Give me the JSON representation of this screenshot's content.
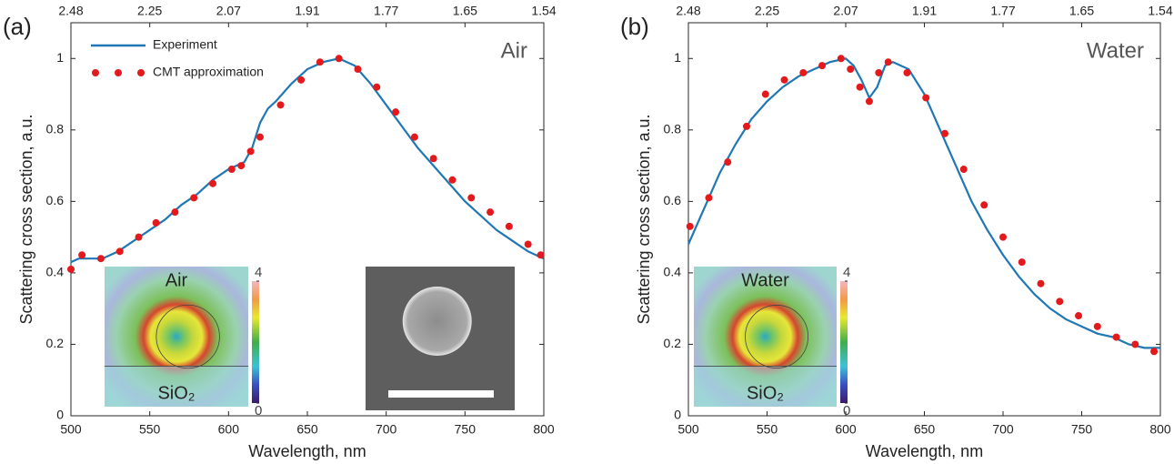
{
  "chart_data": [
    {
      "type": "line",
      "panel_label": "(a)",
      "annotation": "Air",
      "xlabel": "Wavelength, nm",
      "ylabel": "Scattering cross section, a.u.",
      "xlim": [
        500,
        800
      ],
      "ylim": [
        0,
        1.1
      ],
      "xticks": [
        500,
        550,
        600,
        650,
        700,
        750,
        800
      ],
      "x2ticks": [
        {
          "value": 500,
          "label": "2.48"
        },
        {
          "value": 550,
          "label": "2.25"
        },
        {
          "value": 600,
          "label": "2.07"
        },
        {
          "value": 650,
          "label": "1.91"
        },
        {
          "value": 700,
          "label": "1.77"
        },
        {
          "value": 750,
          "label": "1.65"
        },
        {
          "value": 800,
          "label": "1.54"
        }
      ],
      "yticks": [
        0,
        0.2,
        0.4,
        0.6,
        0.8,
        1
      ],
      "legend": "upper left",
      "series": [
        {
          "name": "Experiment",
          "type": "line",
          "color": "#1f77b4",
          "x": [
            500,
            505,
            510,
            520,
            530,
            540,
            550,
            560,
            570,
            580,
            590,
            600,
            605,
            610,
            615,
            620,
            625,
            630,
            640,
            650,
            660,
            670,
            680,
            690,
            700,
            710,
            720,
            730,
            740,
            750,
            760,
            770,
            780,
            790,
            800
          ],
          "values": [
            0.43,
            0.44,
            0.44,
            0.44,
            0.46,
            0.49,
            0.52,
            0.55,
            0.59,
            0.62,
            0.66,
            0.69,
            0.7,
            0.71,
            0.75,
            0.82,
            0.86,
            0.88,
            0.93,
            0.97,
            0.99,
            1.0,
            0.98,
            0.93,
            0.87,
            0.81,
            0.75,
            0.7,
            0.65,
            0.6,
            0.56,
            0.52,
            0.49,
            0.46,
            0.44
          ]
        },
        {
          "name": "CMT approximation",
          "type": "scatter",
          "color": "#e3191c",
          "x": [
            500,
            507,
            519,
            531,
            543,
            554,
            566,
            578,
            590,
            602,
            608,
            614,
            620,
            633,
            646,
            658,
            670,
            682,
            694,
            706,
            718,
            730,
            742,
            754,
            766,
            778,
            790,
            798
          ],
          "values": [
            0.41,
            0.45,
            0.44,
            0.46,
            0.5,
            0.54,
            0.57,
            0.61,
            0.65,
            0.69,
            0.7,
            0.74,
            0.78,
            0.87,
            0.94,
            0.99,
            1.0,
            0.97,
            0.92,
            0.85,
            0.78,
            0.72,
            0.66,
            0.61,
            0.57,
            0.53,
            0.48,
            0.45
          ]
        }
      ],
      "inset": {
        "top_label": "Air",
        "bottom_label": "SiO₂",
        "colorbar_ticks": [
          0,
          4
        ]
      }
    },
    {
      "type": "line",
      "panel_label": "(b)",
      "annotation": "Water",
      "xlabel": "Wavelength, nm",
      "ylabel": "Scattering cross section, a.u.",
      "xlim": [
        500,
        800
      ],
      "ylim": [
        0,
        1.1
      ],
      "xticks": [
        500,
        550,
        600,
        650,
        700,
        750,
        800
      ],
      "x2ticks": [
        {
          "value": 500,
          "label": "2.48"
        },
        {
          "value": 550,
          "label": "2.25"
        },
        {
          "value": 600,
          "label": "2.07"
        },
        {
          "value": 650,
          "label": "1.91"
        },
        {
          "value": 700,
          "label": "1.77"
        },
        {
          "value": 750,
          "label": "1.65"
        },
        {
          "value": 800,
          "label": "1.54"
        }
      ],
      "yticks": [
        0,
        0.2,
        0.4,
        0.6,
        0.8,
        1
      ],
      "series": [
        {
          "type": "line",
          "color": "#1f77b4",
          "x": [
            500,
            510,
            520,
            530,
            540,
            550,
            560,
            570,
            580,
            590,
            600,
            605,
            610,
            615,
            620,
            625,
            630,
            640,
            650,
            660,
            670,
            680,
            690,
            700,
            710,
            720,
            730,
            740,
            750,
            760,
            770,
            780,
            790,
            800
          ],
          "values": [
            0.48,
            0.58,
            0.68,
            0.76,
            0.83,
            0.88,
            0.92,
            0.95,
            0.97,
            0.99,
            1.0,
            0.98,
            0.94,
            0.89,
            0.92,
            0.98,
            0.99,
            0.97,
            0.9,
            0.8,
            0.7,
            0.6,
            0.52,
            0.45,
            0.39,
            0.34,
            0.3,
            0.27,
            0.25,
            0.23,
            0.22,
            0.2,
            0.19,
            0.19
          ]
        },
        {
          "type": "scatter",
          "color": "#e3191c",
          "x": [
            501,
            513,
            525,
            537,
            549,
            561,
            573,
            585,
            597,
            603,
            609,
            615,
            621,
            627,
            639,
            651,
            663,
            675,
            688,
            700,
            712,
            724,
            736,
            748,
            760,
            772,
            784,
            796
          ],
          "values": [
            0.53,
            0.61,
            0.71,
            0.81,
            0.9,
            0.94,
            0.96,
            0.98,
            1.0,
            0.97,
            0.92,
            0.88,
            0.96,
            0.99,
            0.96,
            0.89,
            0.79,
            0.69,
            0.59,
            0.5,
            0.43,
            0.37,
            0.32,
            0.28,
            0.25,
            0.22,
            0.2,
            0.18
          ]
        }
      ],
      "inset": {
        "top_label": "Water",
        "bottom_label": "SiO₂",
        "colorbar_ticks": [
          0,
          4
        ]
      }
    }
  ]
}
